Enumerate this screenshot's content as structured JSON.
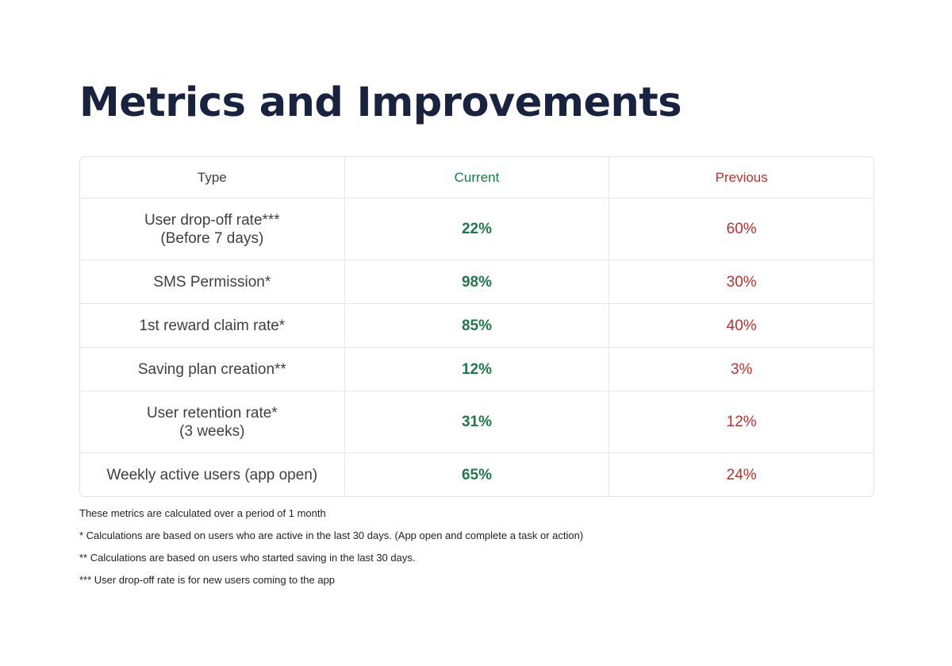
{
  "title": "Metrics and Improvements",
  "colors": {
    "current": "#1e7a4a",
    "previous": "#c0302d",
    "title": "#17233f"
  },
  "table": {
    "headers": [
      "Type",
      "Current",
      "Previous"
    ],
    "rows": [
      {
        "type": "User drop-off rate***\n(Before 7 days)",
        "current": "22%",
        "previous": "60%"
      },
      {
        "type": "SMS Permission*",
        "current": "98%",
        "previous": "30%"
      },
      {
        "type": "1st reward claim rate*",
        "current": "85%",
        "previous": "40%"
      },
      {
        "type": "Saving plan creation**",
        "current": "12%",
        "previous": "3%"
      },
      {
        "type": "User retention rate*\n(3 weeks)",
        "current": "31%",
        "previous": "12%"
      },
      {
        "type": "Weekly active users (app open)",
        "current": "65%",
        "previous": "24%"
      }
    ]
  },
  "notes": [
    "These metrics are calculated over a period of 1 month",
    "* Calculations are based on users who are active in the last 30 days. (App open and complete a task or action)",
    "** Calculations are based on users who started saving in the last 30 days.",
    "*** User drop-off rate is for new users coming to the app"
  ]
}
